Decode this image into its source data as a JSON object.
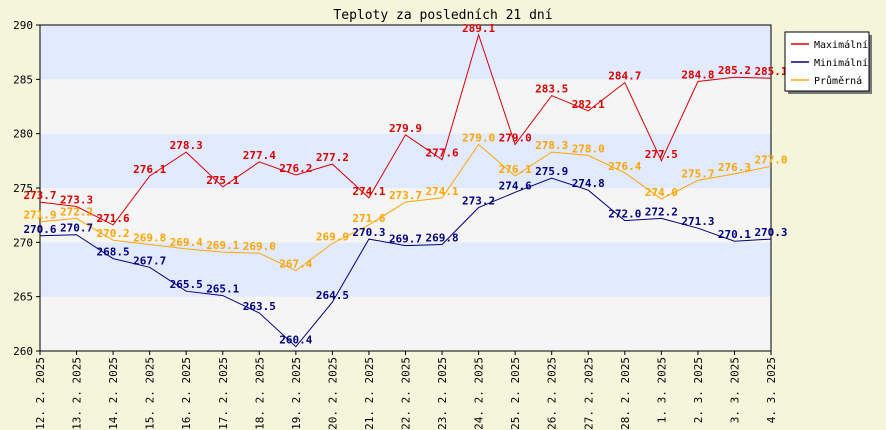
{
  "chart_data": {
    "type": "line",
    "title": "Teploty za posledních 21 dní",
    "xlabel": "",
    "ylabel": "",
    "ylim": [
      260,
      290
    ],
    "yticks": [
      260,
      265,
      270,
      275,
      280,
      285,
      290
    ],
    "categories": [
      "12. 2. 2025",
      "13. 2. 2025",
      "14. 2. 2025",
      "15. 2. 2025",
      "16. 2. 2025",
      "17. 2. 2025",
      "18. 2. 2025",
      "19. 2. 2025",
      "20. 2. 2025",
      "21. 2. 2025",
      "22. 2. 2025",
      "23. 2. 2025",
      "24. 2. 2025",
      "25. 2. 2025",
      "26. 2. 2025",
      "27. 2. 2025",
      "28. 2. 2025",
      "1. 3. 2025",
      "2. 3. 2025",
      "3. 3. 2025",
      "4. 3. 2025"
    ],
    "series": [
      {
        "name": "Maximální",
        "color": "#dd0000",
        "values": [
          273.7,
          273.3,
          271.6,
          276.1,
          278.3,
          275.1,
          277.4,
          276.2,
          277.2,
          274.1,
          279.9,
          277.6,
          289.1,
          279.0,
          283.5,
          282.1,
          284.7,
          277.5,
          284.8,
          285.2,
          285.1
        ]
      },
      {
        "name": "Minimální",
        "color": "#000080",
        "values": [
          270.6,
          270.7,
          268.5,
          267.7,
          265.5,
          265.1,
          263.5,
          260.4,
          264.5,
          270.3,
          269.7,
          269.8,
          273.2,
          274.6,
          275.9,
          274.8,
          272.0,
          272.2,
          271.3,
          270.1,
          270.3
        ]
      },
      {
        "name": "Průměrná",
        "color": "#ffa500",
        "values": [
          271.9,
          272.2,
          270.2,
          269.8,
          269.4,
          269.1,
          269.0,
          267.4,
          269.9,
          271.6,
          273.7,
          274.1,
          279.0,
          276.1,
          278.3,
          278.0,
          276.4,
          274.0,
          275.7,
          276.3,
          277.0
        ]
      }
    ],
    "data_labels": [
      [
        "273.7",
        "273.3",
        "271.6",
        "276.1",
        "278.3",
        "275.1",
        "277.4",
        "276.2",
        "277.2",
        "274.1",
        "279.9",
        "277.6",
        "289.1",
        "279.0",
        "283.5",
        "282.1",
        "284.7",
        "277.5",
        "284.8",
        "285.2",
        "285.1"
      ],
      [
        "270.6",
        "270.7",
        "268.5",
        "267.7",
        "265.5",
        "265.1",
        "263.5",
        "260.4",
        "264.5",
        "270.3",
        "269.7",
        "269.8",
        "273.2",
        "274.6",
        "275.9",
        "274.8",
        "272.0",
        "272.2",
        "271.3",
        "270.1",
        "270.3"
      ],
      [
        "271.9",
        "272.2",
        "270.2",
        "269.8",
        "269.4",
        "269.1",
        "269.0",
        "267.4",
        "269.9",
        "271.6",
        "273.7",
        "274.1",
        "279.0",
        "276.1",
        "278.3",
        "278.0",
        "276.4",
        "274.0",
        "275.7",
        "276.3",
        "277.0"
      ]
    ],
    "grid": true,
    "legend_position": "top-right",
    "band_colors": [
      "#f5f5f5",
      "#e2eaff"
    ],
    "background": "#f5f5dc"
  }
}
